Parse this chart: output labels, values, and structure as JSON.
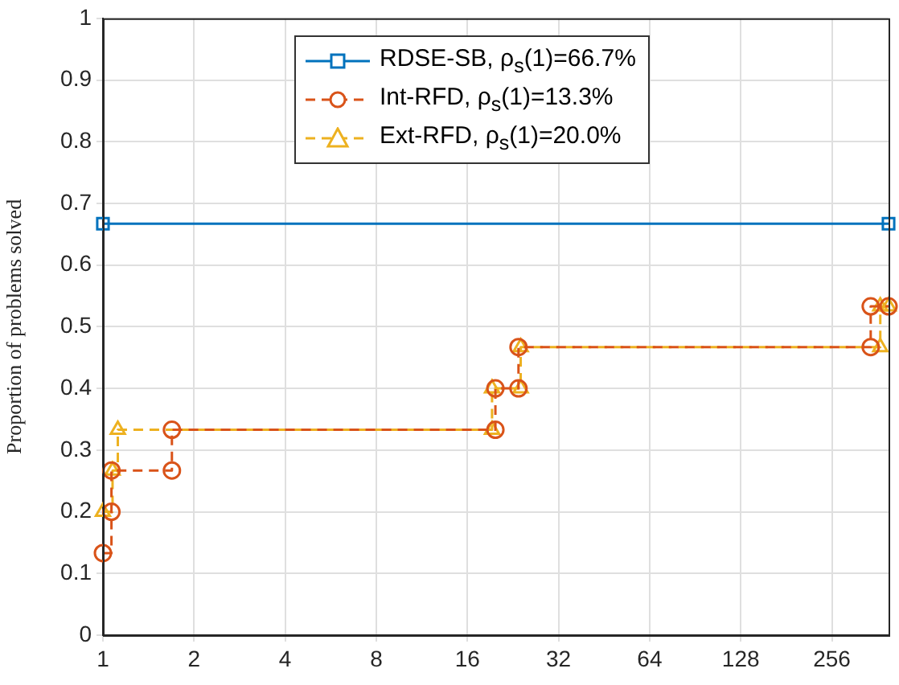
{
  "chart_data": {
    "type": "step",
    "ylabel": "Proportion of problems solved",
    "log": "x",
    "xlim": [
      1,
      394
    ],
    "xticks": [
      1,
      2,
      4,
      8,
      16,
      32,
      64,
      128,
      256
    ],
    "ylim": [
      0,
      1
    ],
    "yticks": [
      0,
      0.1,
      0.2,
      0.3,
      0.4,
      0.5,
      0.6,
      0.7,
      0.8,
      0.9,
      1
    ],
    "grid": true,
    "legend": "top",
    "series": [
      {
        "name": "RDSE-SB, ρ$_{s}$(1)=66.7%",
        "color": "#0072bd",
        "marker": "square",
        "line_style": "solid",
        "x": [
          1,
          394
        ],
        "values": [
          0.667,
          0.667
        ]
      },
      {
        "name": "Int-RFD, ρ$_{s}$(1)=13.3%",
        "color": "#d95319",
        "marker": "circle",
        "line_style": "dashed",
        "x": [
          1,
          1.067,
          1.067,
          1.69,
          1.69,
          19.8,
          19.8,
          23.6,
          23.6,
          344,
          344,
          394
        ],
        "values": [
          0.133,
          0.2,
          0.267,
          0.267,
          0.333,
          0.333,
          0.4,
          0.4,
          0.467,
          0.467,
          0.533,
          0.533
        ]
      },
      {
        "name": "Ext-RFD, ρ$_{s}$(1)=20.0%",
        "color": "#edb120",
        "marker": "triangle",
        "line_style": "dashed",
        "x": [
          1,
          1.076,
          1.12,
          19.3,
          19.3,
          24,
          24,
          370,
          370,
          394
        ],
        "values": [
          0.2,
          0.267,
          0.333,
          0.333,
          0.4,
          0.4,
          0.467,
          0.467,
          0.533,
          0.533
        ]
      }
    ]
  }
}
